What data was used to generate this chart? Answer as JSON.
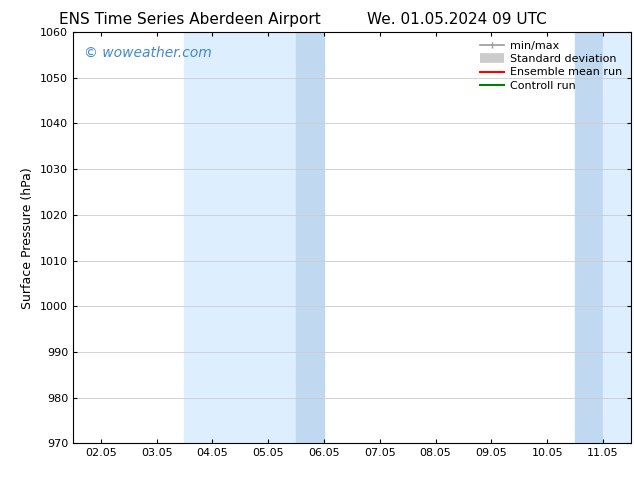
{
  "title_left": "ENS Time Series Aberdeen Airport",
  "title_right": "We. 01.05.2024 09 UTC",
  "ylabel": "Surface Pressure (hPa)",
  "ylim": [
    970,
    1060
  ],
  "yticks": [
    970,
    980,
    990,
    1000,
    1010,
    1020,
    1030,
    1040,
    1050,
    1060
  ],
  "xtick_labels": [
    "02.05",
    "03.05",
    "04.05",
    "05.05",
    "06.05",
    "07.05",
    "08.05",
    "09.05",
    "10.05",
    "11.05"
  ],
  "xtick_positions": [
    0,
    1,
    2,
    3,
    4,
    5,
    6,
    7,
    8,
    9
  ],
  "xlim": [
    -0.5,
    9.5
  ],
  "shade1_light": [
    1.5,
    3.5
  ],
  "shade1_dark": [
    3.5,
    4.0
  ],
  "shade2_dark": [
    9.0,
    9.5
  ],
  "shade2_light_end": 9.5,
  "shade_light_color": "#ddeeff",
  "shade_dark_color": "#c0d8f0",
  "watermark_text": "© woweather.com",
  "watermark_color": "#4488cc",
  "watermark_fontsize": 10,
  "legend_items": [
    {
      "label": "min/max",
      "color": "#999999",
      "lw": 1.2
    },
    {
      "label": "Standard deviation",
      "color": "#cccccc",
      "lw": 7
    },
    {
      "label": "Ensemble mean run",
      "color": "#ff0000",
      "lw": 1.5
    },
    {
      "label": "Controll run",
      "color": "#008000",
      "lw": 1.5
    }
  ],
  "bg_color": "#ffffff",
  "grid_color": "#cccccc",
  "tick_label_size": 8,
  "title_fontsize": 11,
  "legend_fontsize": 8,
  "ylabel_fontsize": 9
}
